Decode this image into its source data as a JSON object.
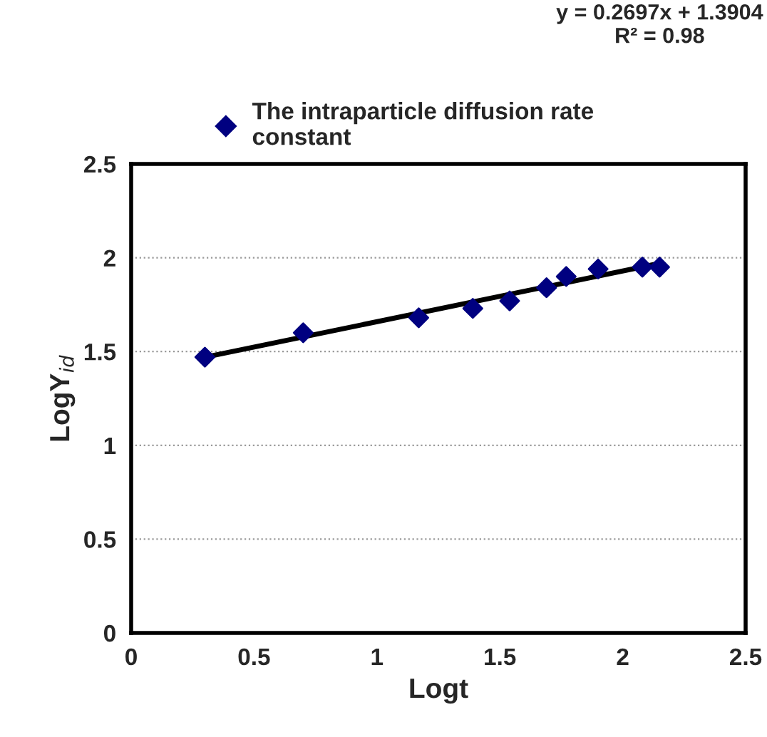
{
  "chart_data": {
    "type": "scatter",
    "xlabel": "Logt",
    "ylabel": "LogY$_{id}$",
    "annotations": [
      "y = 0.2697x + 1.3904\nR² = 0.98"
    ],
    "series": [
      {
        "name": "The intraparticle diffusion rate\nconstant",
        "color": "#000080",
        "marker": "diamond",
        "x": [
          0.3,
          0.7,
          1.17,
          1.39,
          1.54,
          1.69,
          1.77,
          1.9,
          2.08,
          2.15
        ],
        "values": [
          1.47,
          1.6,
          1.68,
          1.73,
          1.77,
          1.84,
          1.9,
          1.94,
          1.95,
          1.95
        ]
      },
      {
        "color": "#000000",
        "type": "line",
        "marker": "none",
        "line_style": "solid",
        "x": [
          0.3,
          2.15
        ],
        "values": [
          1.47,
          1.97
        ]
      }
    ],
    "xlim": [
      0,
      2.5
    ],
    "xticks": [
      0,
      0.5,
      1,
      1.5,
      2,
      2.5
    ],
    "ylim": [
      0,
      2.5
    ],
    "yticks": [
      0,
      0.5,
      1,
      1.5,
      2,
      2.5
    ],
    "grid": "y",
    "legend": "top"
  }
}
